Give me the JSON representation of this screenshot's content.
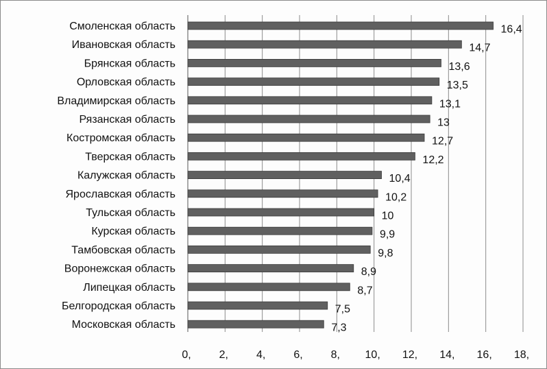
{
  "colors": {
    "bar": "#606060",
    "bar_edge": "#3a3a3a",
    "grid": "#8c8c8c",
    "axis": "#555555",
    "text": "#111111"
  },
  "chart_data": {
    "type": "bar",
    "orientation": "horizontal",
    "title": "",
    "xlabel": "",
    "ylabel": "",
    "xlim": [
      0,
      18
    ],
    "grid": true,
    "legend": "none",
    "x_tick_labels": [
      "0,",
      "2,",
      "4,",
      "6,",
      "8,",
      "10,",
      "12,",
      "14,",
      "16,",
      "18,"
    ],
    "categories": [
      "Смоленская область",
      "Ивановская область",
      "Брянская область",
      "Орловская область",
      "Владимирская область",
      "Рязанская область",
      "Костромская область",
      "Тверская область",
      "Калужская область",
      "Ярославская область",
      "Тульская область",
      "Курская область",
      "Тамбовская область",
      "Воронежская область",
      "Липецкая область",
      "Белгородская область",
      "Московская область"
    ],
    "values": [
      16.4,
      14.7,
      13.6,
      13.5,
      13.1,
      13,
      12.7,
      12.2,
      10.4,
      10.2,
      10,
      9.9,
      9.8,
      8.9,
      8.7,
      7.5,
      7.3
    ],
    "value_labels": [
      "16,4",
      "14,7",
      "13,6",
      "13,5",
      "13,1",
      "13",
      "12,7",
      "12,2",
      "10,4",
      "10,2",
      "10",
      "9,9",
      "9,8",
      "8,9",
      "8,7",
      "7,5",
      "7,3"
    ]
  }
}
